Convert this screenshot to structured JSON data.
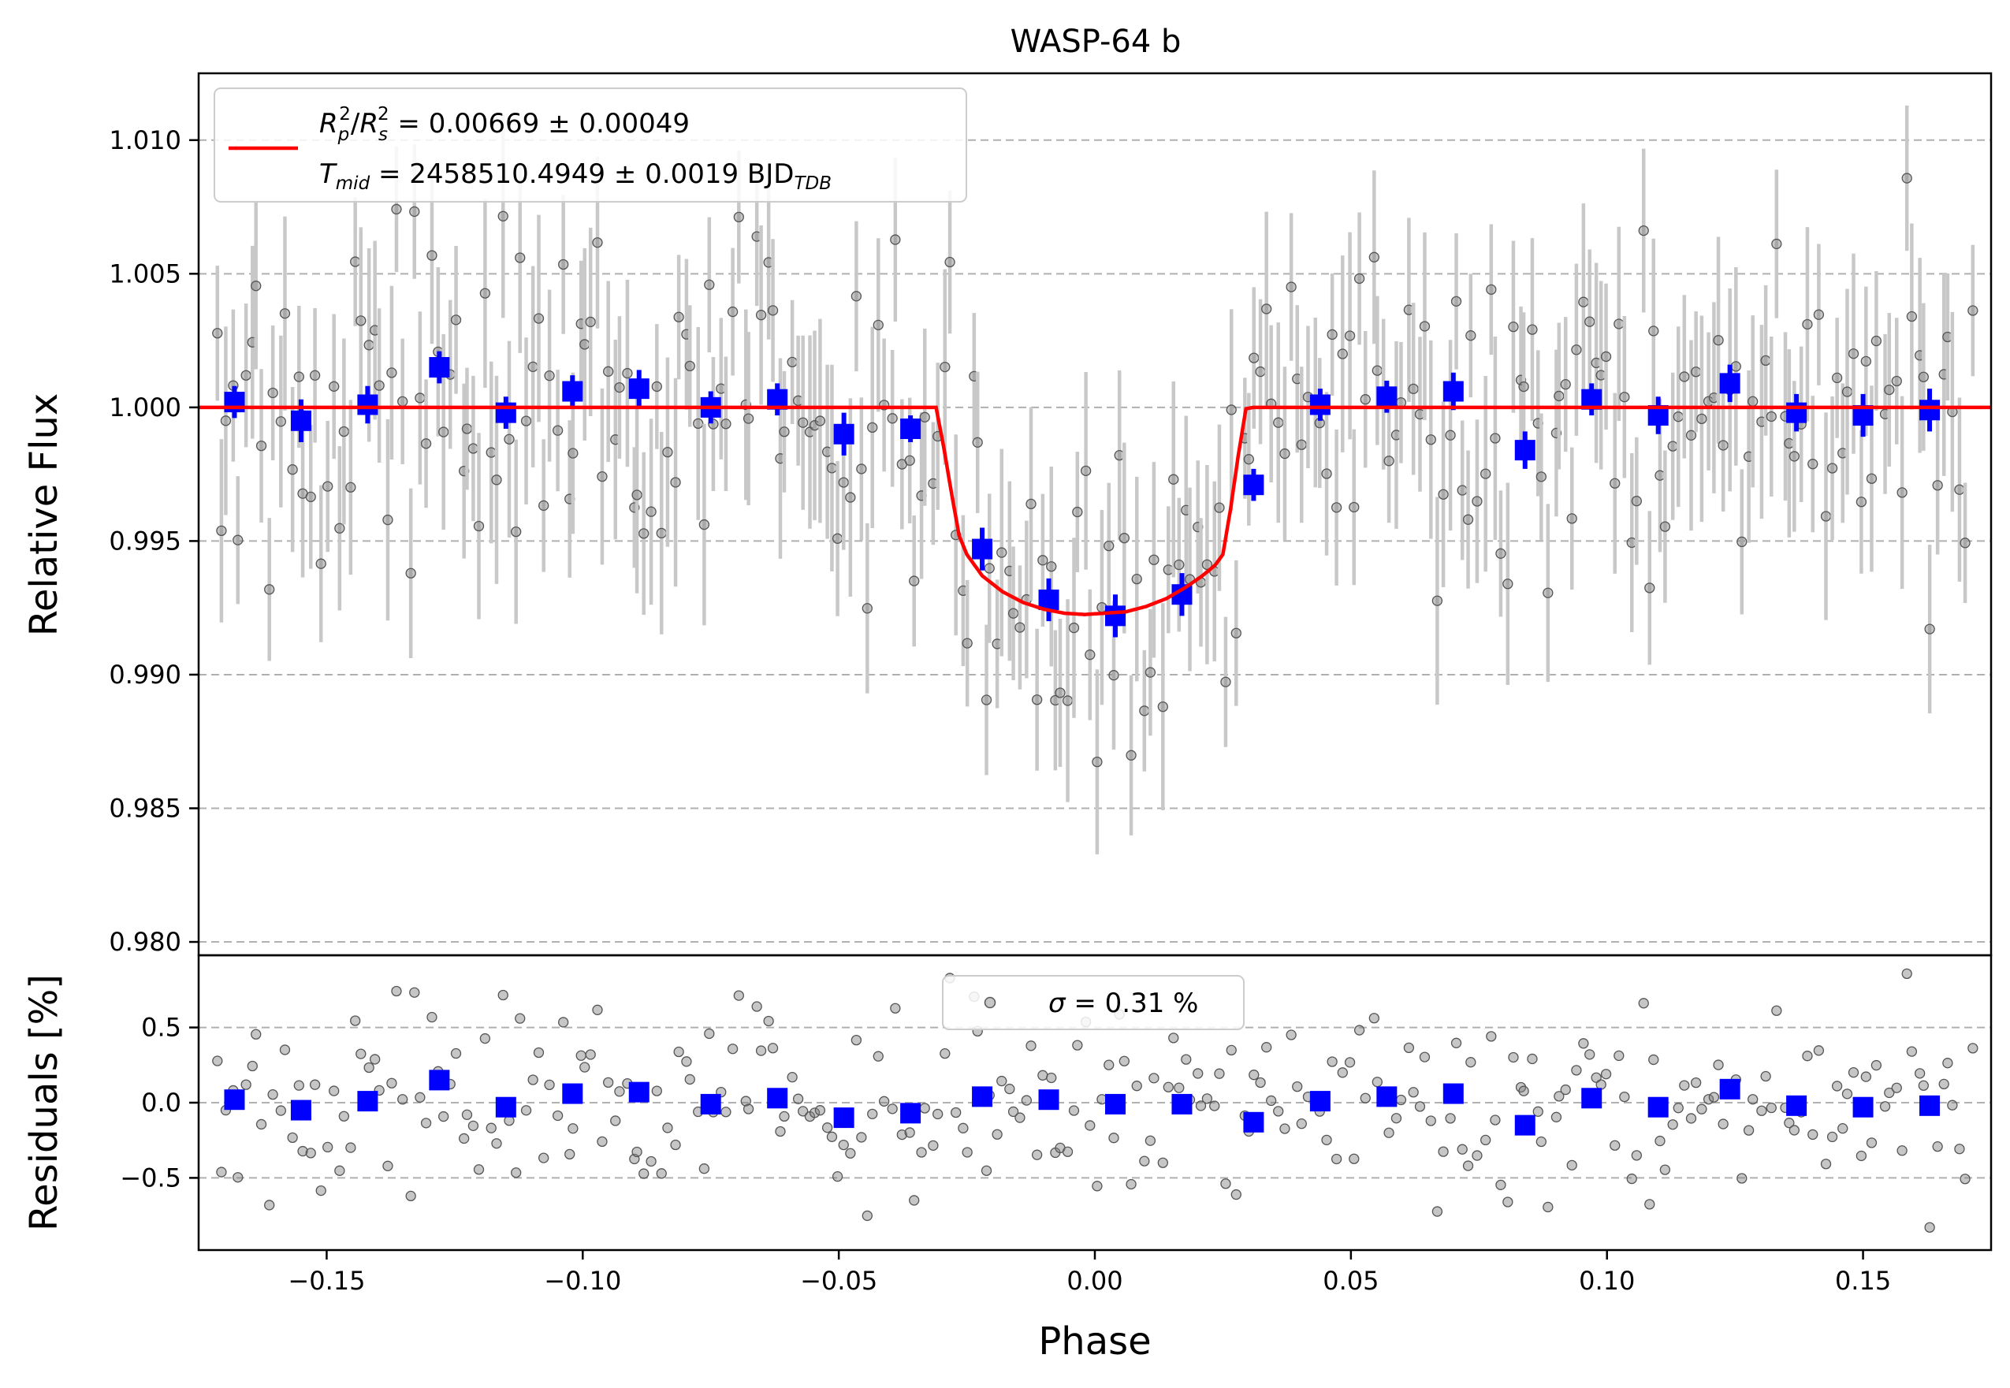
{
  "chart_data": [
    {
      "type": "scatter",
      "panel": "main",
      "title": "WASP-64 b",
      "xlabel": "Phase",
      "ylabel": "Relative Flux",
      "xlim": [
        -0.175,
        0.175
      ],
      "ylim": [
        0.9795,
        1.0125
      ],
      "yticks": [
        0.98,
        0.985,
        0.99,
        0.995,
        1.0,
        1.005,
        1.01
      ],
      "ytick_labels": [
        "0.980",
        "0.985",
        "0.990",
        "0.995",
        "1.000",
        "1.005",
        "1.010"
      ],
      "grid": "y dashed",
      "legend": {
        "placement": "top-left",
        "line1": {
          "base1": "R",
          "sub1": "p",
          "sup1": "2",
          "slash": "/",
          "base2": "R",
          "sub2": "s",
          "sup2": "2",
          "rest": " = 0.00669 ± 0.00049"
        },
        "line2": {
          "base": "T",
          "sub": "mid",
          "rest": " = 2458510.4949 ± 0.0019 BJD",
          "unit_sub": "TDB"
        }
      },
      "model": {
        "color": "#ff0000",
        "depth": 0.00669,
        "t_mid_phase": -0.002,
        "phase_points": [
          -0.175,
          -0.031,
          -0.0295,
          -0.028,
          -0.0265,
          -0.025,
          -0.022,
          -0.018,
          -0.014,
          -0.01,
          -0.006,
          -0.002,
          0.002,
          0.006,
          0.01,
          0.014,
          0.018,
          0.021,
          0.0235,
          0.025,
          0.0265,
          0.028,
          0.0295,
          0.031,
          0.175
        ],
        "flux_points": [
          1.0,
          1.0,
          0.9985,
          0.9968,
          0.9952,
          0.9945,
          0.9937,
          0.9931,
          0.9927,
          0.99245,
          0.9923,
          0.99225,
          0.9923,
          0.99235,
          0.99255,
          0.99285,
          0.9933,
          0.9937,
          0.9941,
          0.9945,
          0.9962,
          0.9982,
          0.99995,
          1.0,
          1.0
        ]
      },
      "binned": {
        "color": "#0000ff",
        "phase": [
          -0.168,
          -0.155,
          -0.142,
          -0.128,
          -0.115,
          -0.102,
          -0.089,
          -0.075,
          -0.062,
          -0.049,
          -0.036,
          -0.022,
          -0.009,
          0.004,
          0.017,
          0.031,
          0.044,
          0.057,
          0.07,
          0.084,
          0.097,
          0.11,
          0.124,
          0.137,
          0.15,
          0.163
        ],
        "flux": [
          1.0002,
          0.9995,
          1.0001,
          1.0015,
          0.9998,
          1.0006,
          1.0007,
          1.0,
          1.0003,
          0.999,
          0.9992,
          0.9947,
          0.9928,
          0.9922,
          0.993,
          0.9971,
          1.0001,
          1.0004,
          1.0006,
          0.9984,
          1.0003,
          0.9997,
          1.0009,
          0.9998,
          0.9997,
          0.9999
        ],
        "err": [
          0.0006,
          0.0008,
          0.0007,
          0.0006,
          0.0006,
          0.0006,
          0.0007,
          0.0006,
          0.0006,
          0.0008,
          0.0005,
          0.0008,
          0.0008,
          0.0008,
          0.0008,
          0.0006,
          0.0006,
          0.0006,
          0.0007,
          0.0007,
          0.0006,
          0.0007,
          0.0007,
          0.0007,
          0.0008,
          0.0008
        ]
      },
      "raw": {
        "color": "#808080",
        "n_points": 300,
        "typical_err": 0.003
      }
    },
    {
      "type": "scatter",
      "panel": "residuals",
      "xlabel": "Phase",
      "ylabel": "Residuals [%]",
      "xlim": [
        -0.175,
        0.175
      ],
      "ylim": [
        -0.98,
        0.98
      ],
      "xticks": [
        -0.15,
        -0.1,
        -0.05,
        0.0,
        0.05,
        0.1,
        0.15
      ],
      "xtick_labels": [
        "−0.15",
        "−0.10",
        "−0.05",
        "0.00",
        "0.05",
        "0.10",
        "0.15"
      ],
      "yticks": [
        -0.5,
        0.0,
        0.5
      ],
      "ytick_labels": [
        "−0.5",
        "0.0",
        "0.5"
      ],
      "grid": "y dashed",
      "legend": {
        "placement": "top-center",
        "symbol": "σ",
        "text": " = 0.31 %"
      },
      "binned": {
        "color": "#0000ff",
        "phase": [
          -0.168,
          -0.155,
          -0.142,
          -0.128,
          -0.115,
          -0.102,
          -0.089,
          -0.075,
          -0.062,
          -0.049,
          -0.036,
          -0.022,
          -0.009,
          0.004,
          0.017,
          0.031,
          0.044,
          0.057,
          0.07,
          0.084,
          0.097,
          0.11,
          0.124,
          0.137,
          0.15,
          0.163
        ],
        "residual": [
          0.02,
          -0.05,
          0.01,
          0.15,
          -0.03,
          0.06,
          0.07,
          -0.01,
          0.03,
          -0.1,
          -0.07,
          0.04,
          0.02,
          -0.01,
          -0.01,
          -0.13,
          0.01,
          0.04,
          0.06,
          -0.15,
          0.03,
          -0.03,
          0.09,
          -0.02,
          -0.03,
          -0.02
        ]
      },
      "raw": {
        "color": "#808080",
        "sigma_pct": 0.31
      }
    }
  ]
}
